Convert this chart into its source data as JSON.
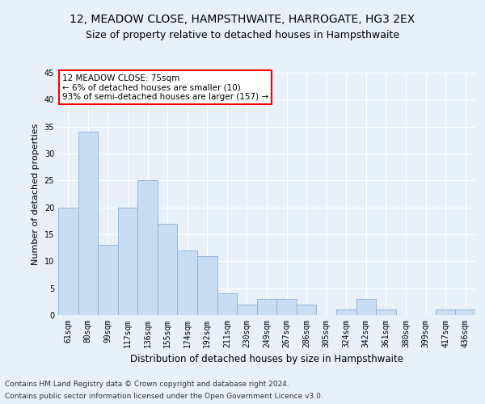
{
  "title": "12, MEADOW CLOSE, HAMPSTHWAITE, HARROGATE, HG3 2EX",
  "subtitle": "Size of property relative to detached houses in Hampsthwaite",
  "xlabel": "Distribution of detached houses by size in Hampsthwaite",
  "ylabel": "Number of detached properties",
  "categories": [
    "61sqm",
    "80sqm",
    "99sqm",
    "117sqm",
    "136sqm",
    "155sqm",
    "174sqm",
    "192sqm",
    "211sqm",
    "230sqm",
    "249sqm",
    "267sqm",
    "286sqm",
    "305sqm",
    "324sqm",
    "342sqm",
    "361sqm",
    "380sqm",
    "399sqm",
    "417sqm",
    "436sqm"
  ],
  "values": [
    20,
    34,
    13,
    20,
    25,
    17,
    12,
    11,
    4,
    2,
    3,
    3,
    2,
    0,
    1,
    3,
    1,
    0,
    0,
    1,
    1
  ],
  "bar_color": "#c9ddf2",
  "bar_edge_color": "#8ab0d8",
  "annotation_text_line1": "12 MEADOW CLOSE: 75sqm",
  "annotation_text_line2": "← 6% of detached houses are smaller (10)",
  "annotation_text_line3": "93% of semi-detached houses are larger (157) →",
  "ylim": [
    0,
    45
  ],
  "yticks": [
    0,
    5,
    10,
    15,
    20,
    25,
    30,
    35,
    40,
    45
  ],
  "footnote1": "Contains HM Land Registry data © Crown copyright and database right 2024.",
  "footnote2": "Contains public sector information licensed under the Open Government Licence v3.0.",
  "bg_color": "#e8f0fa",
  "plot_bg_color": "#e8f0fa",
  "grid_color": "#ffffff",
  "title_fontsize": 10,
  "subtitle_fontsize": 9,
  "annotation_fontsize": 7.5,
  "tick_fontsize": 7,
  "xlabel_fontsize": 8.5,
  "ylabel_fontsize": 8,
  "footnote_fontsize": 6.5
}
